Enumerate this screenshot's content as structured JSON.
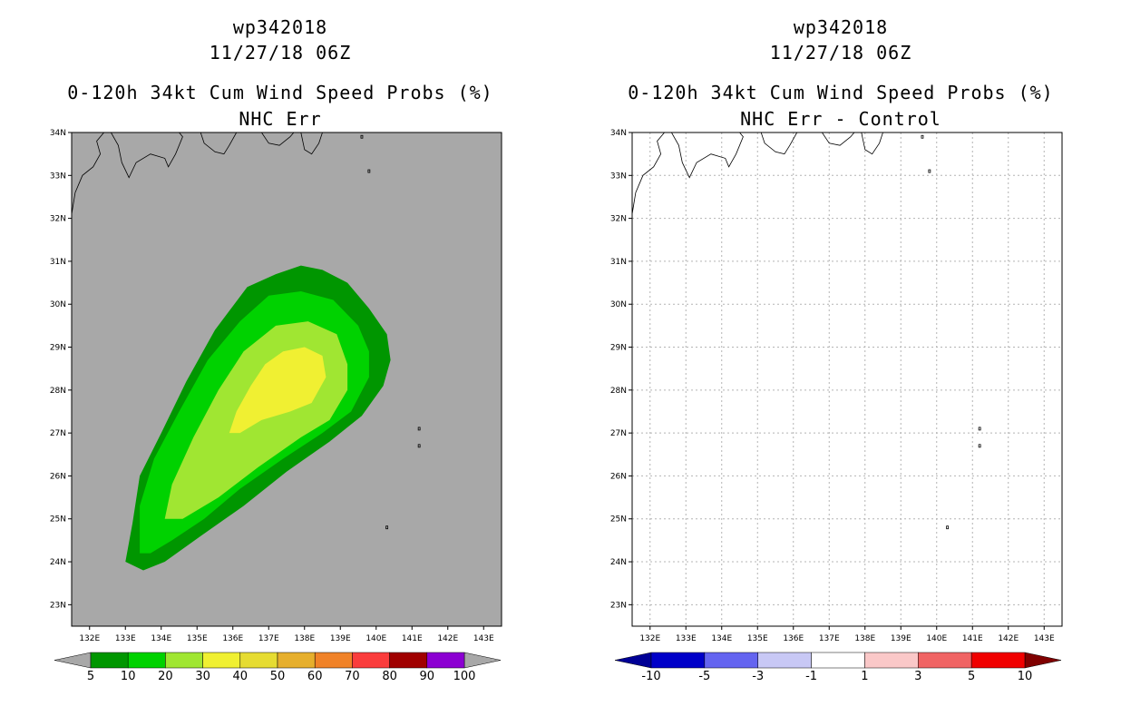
{
  "chart_data": [
    {
      "type": "heatmap",
      "panel": "left",
      "title_lines": [
        "wp342018",
        "11/27/18 06Z",
        "0-120h 34kt Cum Wind Speed Probs (%)",
        "NHC Err"
      ],
      "x_ticks": [
        "132E",
        "133E",
        "134E",
        "135E",
        "136E",
        "137E",
        "138E",
        "139E",
        "140E",
        "141E",
        "142E",
        "143E"
      ],
      "y_ticks": [
        "34N",
        "33N",
        "32N",
        "31N",
        "30N",
        "29N",
        "28N",
        "27N",
        "26N",
        "25N",
        "24N",
        "23N"
      ],
      "x_range": [
        131.5,
        143.5
      ],
      "y_range": [
        22.5,
        34.0
      ],
      "grid": false,
      "background_color": "#a8a8a8",
      "contours": [
        {
          "level_min": 5,
          "color": "#009600",
          "polygon": [
            [
              133.0,
              24.0
            ],
            [
              133.2,
              24.9
            ],
            [
              133.4,
              26.0
            ],
            [
              134.0,
              27.0
            ],
            [
              134.7,
              28.2
            ],
            [
              135.5,
              29.4
            ],
            [
              136.4,
              30.4
            ],
            [
              137.2,
              30.7
            ],
            [
              137.9,
              30.9
            ],
            [
              138.5,
              30.8
            ],
            [
              139.2,
              30.5
            ],
            [
              139.8,
              29.9
            ],
            [
              140.3,
              29.3
            ],
            [
              140.4,
              28.7
            ],
            [
              140.2,
              28.1
            ],
            [
              139.6,
              27.4
            ],
            [
              138.7,
              26.8
            ],
            [
              137.5,
              26.1
            ],
            [
              136.3,
              25.3
            ],
            [
              135.1,
              24.6
            ],
            [
              134.1,
              24.0
            ],
            [
              133.5,
              23.8
            ]
          ]
        },
        {
          "level_min": 10,
          "color": "#00d200",
          "polygon": [
            [
              133.4,
              24.2
            ],
            [
              133.4,
              25.3
            ],
            [
              133.8,
              26.4
            ],
            [
              134.5,
              27.5
            ],
            [
              135.3,
              28.7
            ],
            [
              136.2,
              29.6
            ],
            [
              137.0,
              30.2
            ],
            [
              137.9,
              30.3
            ],
            [
              138.8,
              30.1
            ],
            [
              139.5,
              29.5
            ],
            [
              139.8,
              28.9
            ],
            [
              139.8,
              28.3
            ],
            [
              139.3,
              27.5
            ],
            [
              138.5,
              27.0
            ],
            [
              137.4,
              26.4
            ],
            [
              136.2,
              25.7
            ],
            [
              135.2,
              25.0
            ],
            [
              134.3,
              24.5
            ],
            [
              133.7,
              24.2
            ]
          ]
        },
        {
          "level_min": 20,
          "color": "#a0e632",
          "polygon": [
            [
              134.1,
              25.0
            ],
            [
              134.3,
              25.8
            ],
            [
              134.9,
              26.9
            ],
            [
              135.6,
              28.0
            ],
            [
              136.3,
              28.9
            ],
            [
              137.2,
              29.5
            ],
            [
              138.1,
              29.6
            ],
            [
              138.9,
              29.3
            ],
            [
              139.2,
              28.6
            ],
            [
              139.2,
              28.0
            ],
            [
              138.7,
              27.3
            ],
            [
              137.9,
              26.9
            ],
            [
              136.7,
              26.2
            ],
            [
              135.6,
              25.5
            ],
            [
              134.6,
              25.0
            ]
          ]
        },
        {
          "level_min": 30,
          "color": "#f0f032",
          "polygon": [
            [
              135.9,
              27.0
            ],
            [
              136.1,
              27.5
            ],
            [
              136.5,
              28.1
            ],
            [
              136.9,
              28.6
            ],
            [
              137.4,
              28.9
            ],
            [
              138.0,
              29.0
            ],
            [
              138.5,
              28.8
            ],
            [
              138.6,
              28.3
            ],
            [
              138.2,
              27.7
            ],
            [
              137.6,
              27.5
            ],
            [
              136.8,
              27.3
            ],
            [
              136.2,
              27.0
            ]
          ]
        }
      ],
      "islands": [
        [
          141.2,
          27.1
        ],
        [
          141.2,
          26.7
        ],
        [
          140.3,
          24.8
        ],
        [
          139.8,
          33.1
        ],
        [
          139.6,
          33.9
        ]
      ],
      "colorbar": {
        "labels": [
          "5",
          "10",
          "20",
          "30",
          "40",
          "50",
          "60",
          "70",
          "80",
          "90",
          "100"
        ],
        "colors": [
          "#009600",
          "#00d200",
          "#a0e632",
          "#f0f032",
          "#e6dc32",
          "#e6af2d",
          "#f08228",
          "#fa3c3c",
          "#a00000",
          "#8c00d2"
        ],
        "end_colors": [
          "#a8a8a8",
          "#a8a8a8"
        ]
      }
    },
    {
      "type": "heatmap",
      "panel": "right",
      "title_lines": [
        "wp342018",
        "11/27/18 06Z",
        "0-120h 34kt Cum Wind Speed Probs (%)",
        "NHC Err - Control"
      ],
      "x_ticks": [
        "132E",
        "133E",
        "134E",
        "135E",
        "136E",
        "137E",
        "138E",
        "139E",
        "140E",
        "141E",
        "142E",
        "143E"
      ],
      "y_ticks": [
        "34N",
        "33N",
        "32N",
        "31N",
        "30N",
        "29N",
        "28N",
        "27N",
        "26N",
        "25N",
        "24N",
        "23N"
      ],
      "x_range": [
        131.5,
        143.5
      ],
      "y_range": [
        22.5,
        34.0
      ],
      "grid": true,
      "background_color": "#ffffff",
      "contours": [],
      "islands": [
        [
          141.2,
          27.1
        ],
        [
          141.2,
          26.7
        ],
        [
          140.3,
          24.8
        ],
        [
          139.8,
          33.1
        ],
        [
          139.6,
          33.9
        ]
      ],
      "colorbar": {
        "labels": [
          "-10",
          "-5",
          "-3",
          "-1",
          "1",
          "3",
          "5",
          "10"
        ],
        "colors": [
          "#0000c8",
          "#6464f0",
          "#c8c8f5",
          "#ffffff",
          "#fac8c8",
          "#f06464",
          "#f00000"
        ],
        "end_colors": [
          "#000096",
          "#800000"
        ]
      }
    }
  ]
}
